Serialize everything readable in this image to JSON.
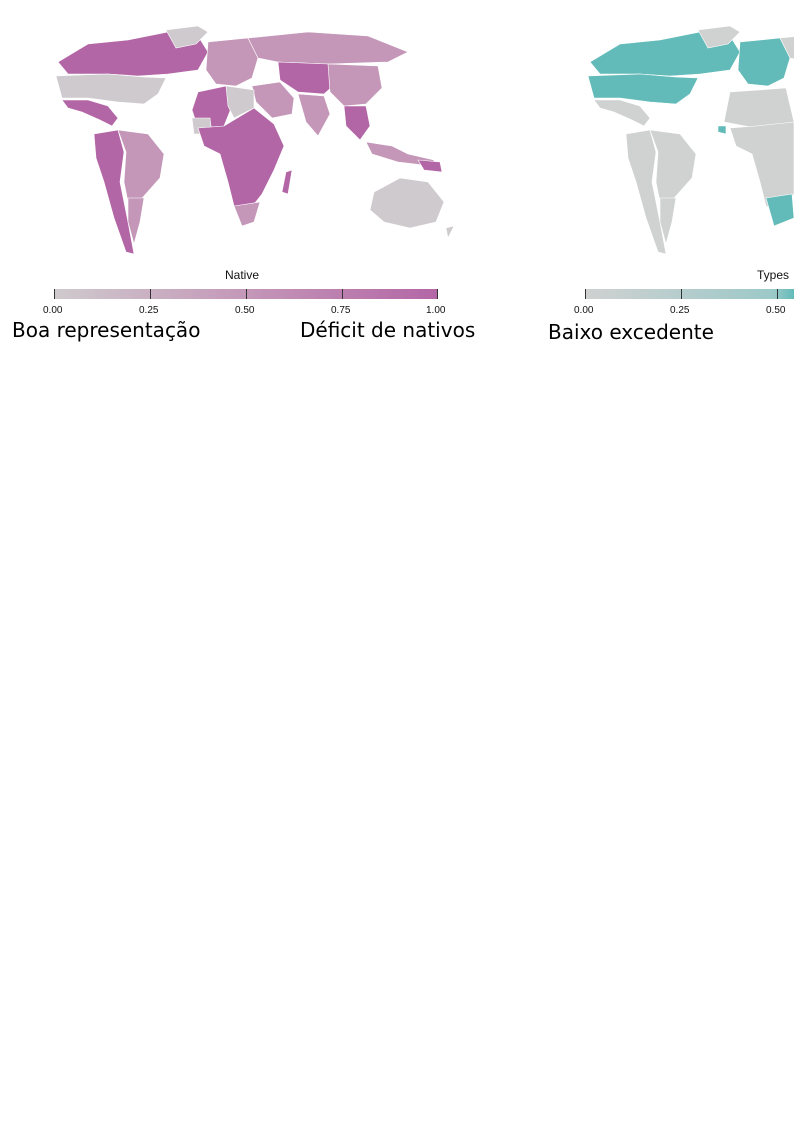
{
  "panels": [
    {
      "id": "native",
      "legend_title": "Native",
      "ticks": [
        "0.00",
        "0.25",
        "0.50",
        "0.75",
        "1.00"
      ],
      "low_label": "Boa representação",
      "high_label": "Déficit de nativos",
      "colors": {
        "low": "#cfcacd",
        "mid": "#c497b8",
        "high": "#b366a6",
        "border": "#ffffff"
      }
    },
    {
      "id": "types",
      "legend_title": "Types",
      "ticks": [
        "0.00",
        "0.25",
        "0.50"
      ],
      "low_label": "Baixo excedente",
      "colors": {
        "low": "#d0d1d1",
        "mid": "#9cc9c8",
        "high": "#62bbb9",
        "border": "#ffffff"
      }
    }
  ]
}
